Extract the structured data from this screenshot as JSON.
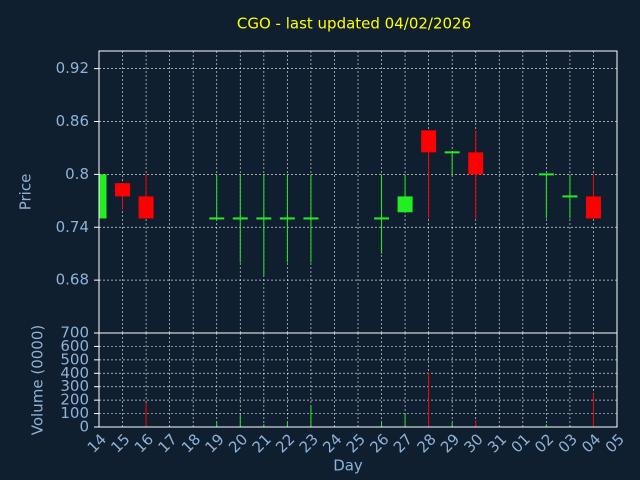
{
  "chart_data": [
    {
      "type": "candlestick",
      "title": "CGO - last updated 04/02/2026",
      "ylabel": "Price",
      "xlabel": "Day",
      "categories": [
        "14",
        "15",
        "16",
        "17",
        "18",
        "19",
        "20",
        "21",
        "22",
        "23",
        "24",
        "25",
        "26",
        "27",
        "28",
        "29",
        "30",
        "31",
        "01",
        "02",
        "03",
        "04",
        "05"
      ],
      "open": [
        0.75,
        0.79,
        0.775,
        null,
        null,
        0.75,
        0.75,
        0.75,
        0.75,
        0.75,
        null,
        null,
        0.75,
        0.757,
        0.85,
        0.825,
        0.825,
        null,
        null,
        0.8,
        0.775,
        0.775,
        null
      ],
      "high": [
        0.8,
        0.79,
        0.8,
        null,
        null,
        0.8,
        0.8,
        0.8,
        0.8,
        0.8,
        null,
        null,
        0.8,
        0.8,
        0.85,
        0.825,
        0.85,
        null,
        null,
        0.8,
        0.8,
        0.8,
        null
      ],
      "low": [
        0.75,
        0.76,
        0.75,
        null,
        null,
        0.75,
        0.7,
        0.685,
        0.7,
        0.7,
        null,
        null,
        0.71,
        0.757,
        0.75,
        0.8,
        0.75,
        null,
        null,
        0.75,
        0.75,
        0.75,
        null
      ],
      "close": [
        0.8,
        0.775,
        0.75,
        null,
        null,
        0.75,
        0.75,
        0.75,
        0.75,
        0.75,
        null,
        null,
        0.75,
        0.775,
        0.825,
        0.825,
        0.8,
        null,
        null,
        0.8,
        0.775,
        0.75,
        null
      ],
      "up_color": "#22ee22",
      "down_color": "#ff0000",
      "ylim": [
        0.62,
        0.94
      ],
      "yticks": [
        0.68,
        0.74,
        0.8,
        0.86,
        0.92
      ],
      "grid": true
    },
    {
      "type": "bar",
      "ylabel": "Volume (0000)",
      "values": [
        0,
        0,
        180,
        null,
        null,
        40,
        90,
        20,
        40,
        160,
        null,
        null,
        30,
        100,
        410,
        30,
        50,
        null,
        null,
        20,
        10,
        250,
        null
      ],
      "ylim": [
        0,
        700
      ],
      "yticks": [
        0,
        100,
        200,
        300,
        400,
        500,
        600,
        700
      ],
      "grid": true
    }
  ]
}
